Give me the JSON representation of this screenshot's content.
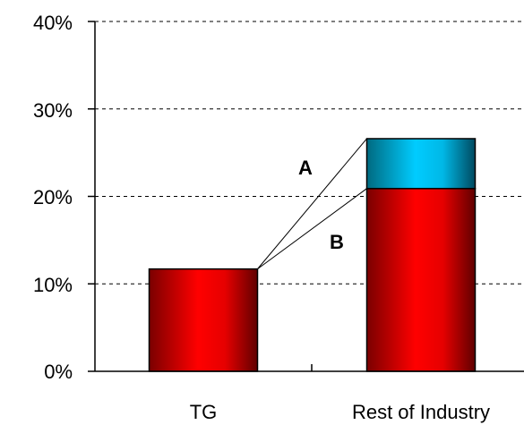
{
  "chart_data": {
    "type": "bar",
    "stacked": true,
    "categories": [
      "TG",
      "Rest of Industry"
    ],
    "series": [
      {
        "values": [
          11.7,
          20.9
        ],
        "color": "#ff0000"
      },
      {
        "values": [
          0,
          5.7
        ],
        "color": "#00ccff"
      }
    ],
    "ylim": [
      0,
      40
    ],
    "yticks": [
      0,
      10,
      20,
      30,
      40
    ],
    "ytick_labels": [
      "0%",
      "10%",
      "20%",
      "30%",
      "40%"
    ],
    "grid": "horizontal-dashed",
    "annotations": [
      {
        "label": "A",
        "from": "TG top",
        "to": "Rest of Industry total"
      },
      {
        "label": "B",
        "from": "TG top",
        "to": "Rest of Industry red segment top"
      }
    ]
  }
}
